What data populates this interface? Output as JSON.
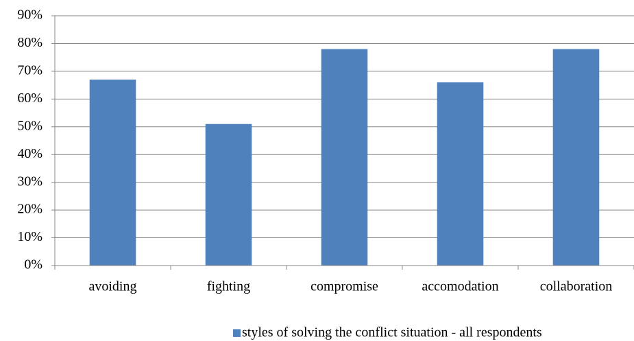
{
  "chart_data": {
    "type": "bar",
    "categories": [
      "avoiding",
      "fighting",
      "compromise",
      "accomodation",
      "collaboration"
    ],
    "series": [
      {
        "name": "styles of solving the conflict situation - all respondents",
        "color": "#4f81bd",
        "values": [
          67,
          51,
          78,
          66,
          78
        ]
      }
    ],
    "ylim": [
      0,
      90
    ],
    "yticks": [
      {
        "value": 0,
        "label": "0%"
      },
      {
        "value": 10,
        "label": "10%"
      },
      {
        "value": 20,
        "label": "20%"
      },
      {
        "value": 30,
        "label": "30%"
      },
      {
        "value": 40,
        "label": "40%"
      },
      {
        "value": 50,
        "label": "50%"
      },
      {
        "value": 60,
        "label": "60%"
      },
      {
        "value": 70,
        "label": "70%"
      },
      {
        "value": 80,
        "label": "80%"
      },
      {
        "value": 90,
        "label": "90%"
      }
    ],
    "grid": true,
    "legend": "bottom"
  }
}
